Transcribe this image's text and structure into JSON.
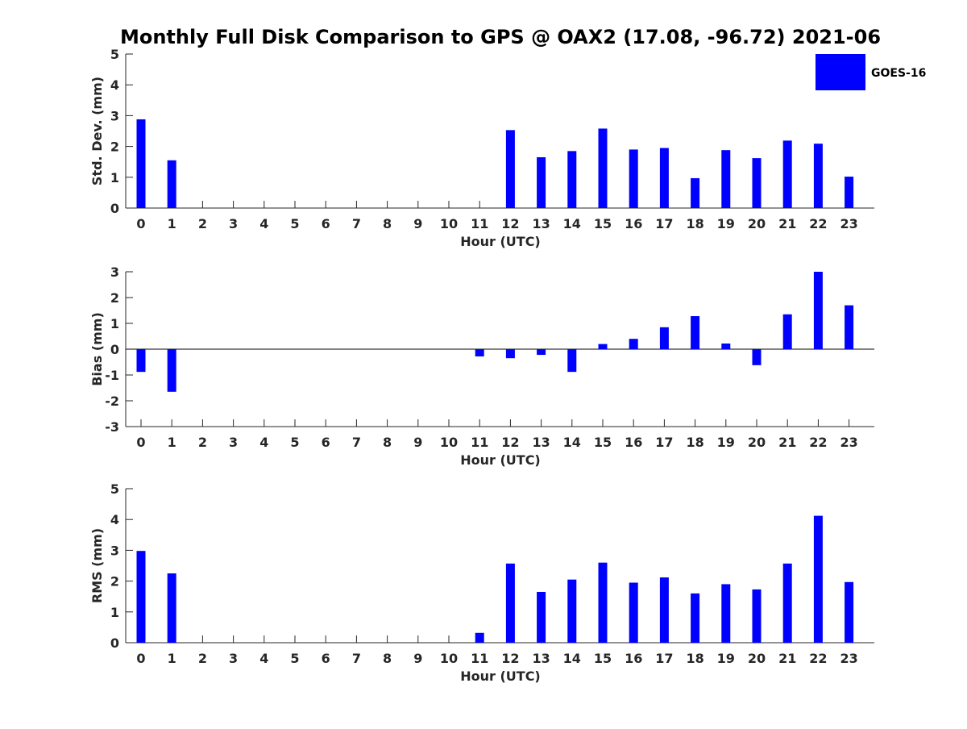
{
  "chart_data": {
    "type": "bar",
    "title": "Monthly Full Disk Comparison to GPS @ OAX2 (17.08, -96.72) 2021-06",
    "legend": {
      "position": "top-right",
      "entries": [
        "GOES-16"
      ]
    },
    "colors": {
      "bar": "#0000ff",
      "axis": "#262626",
      "text": "#000000",
      "zero_line": "#000000"
    },
    "x": [
      "0",
      "1",
      "2",
      "3",
      "4",
      "5",
      "6",
      "7",
      "8",
      "9",
      "10",
      "11",
      "12",
      "13",
      "14",
      "15",
      "16",
      "17",
      "18",
      "19",
      "20",
      "21",
      "22",
      "23"
    ],
    "panels": [
      {
        "ylabel": "Std. Dev. (mm)",
        "xlabel": "Hour (UTC)",
        "ylim": [
          0,
          5
        ],
        "yticks": [
          "0",
          "1",
          "2",
          "3",
          "4",
          "5"
        ],
        "series": [
          {
            "name": "GOES-16",
            "values": [
              2.88,
              1.55,
              null,
              null,
              null,
              null,
              null,
              null,
              null,
              null,
              null,
              null,
              2.53,
              1.65,
              1.85,
              2.58,
              1.9,
              1.95,
              0.97,
              1.88,
              1.62,
              2.19,
              2.09,
              1.02
            ]
          }
        ]
      },
      {
        "ylabel": "Bias (mm)",
        "xlabel": "Hour (UTC)",
        "ylim": [
          -3,
          3
        ],
        "yticks": [
          "-3",
          "-2",
          "-1",
          "0",
          "1",
          "2",
          "3"
        ],
        "series": [
          {
            "name": "GOES-16",
            "values": [
              -0.88,
              -1.65,
              null,
              null,
              null,
              null,
              null,
              null,
              null,
              null,
              null,
              -0.28,
              -0.35,
              -0.22,
              -0.88,
              0.2,
              0.4,
              0.85,
              1.28,
              0.22,
              -0.62,
              1.35,
              3.0,
              1.7
            ]
          }
        ]
      },
      {
        "ylabel": "RMS (mm)",
        "xlabel": "Hour (UTC)",
        "ylim": [
          0,
          5
        ],
        "yticks": [
          "0",
          "1",
          "2",
          "3",
          "4",
          "5"
        ],
        "series": [
          {
            "name": "GOES-16",
            "values": [
              2.98,
              2.25,
              null,
              null,
              null,
              null,
              null,
              null,
              null,
              null,
              null,
              0.32,
              2.57,
              1.65,
              2.05,
              2.6,
              1.95,
              2.12,
              1.6,
              1.9,
              1.73,
              2.57,
              4.12,
              1.97
            ]
          }
        ]
      }
    ]
  }
}
